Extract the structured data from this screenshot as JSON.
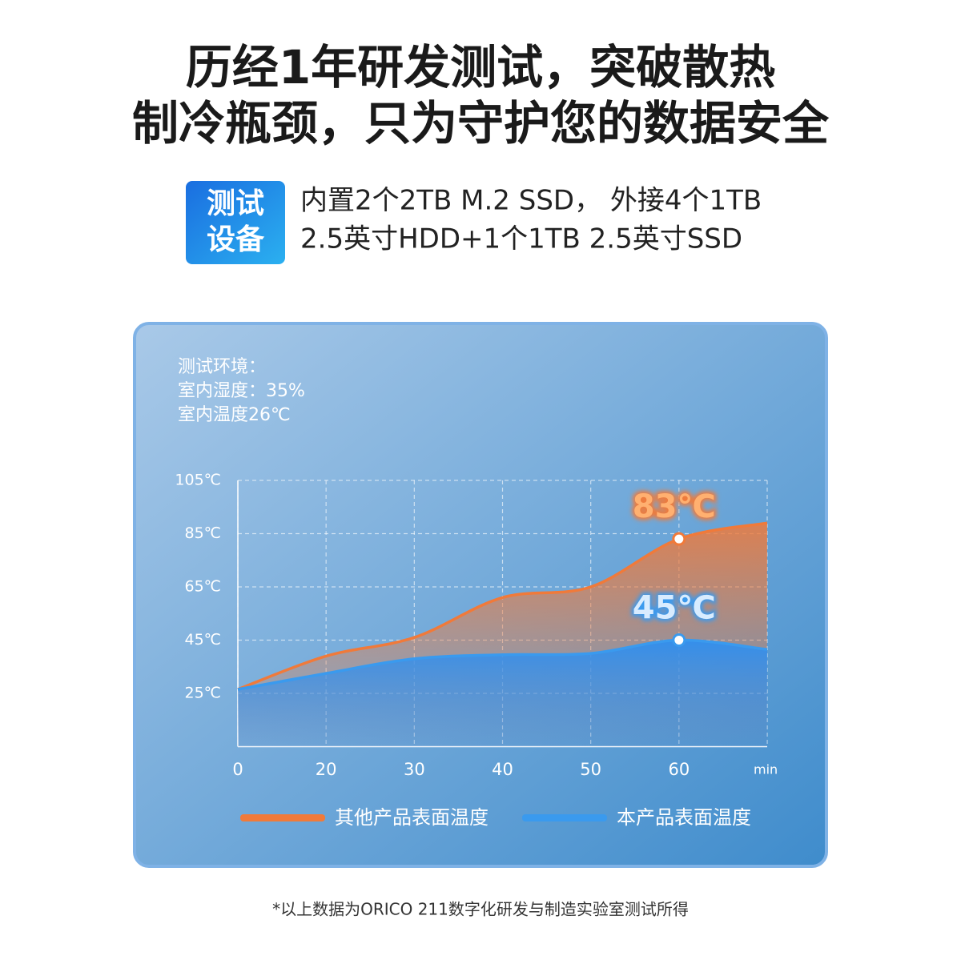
{
  "header": {
    "title_lines": [
      "历经1年研发测试，突破散热",
      "制冷瓶颈，只为守护您的数据安全"
    ]
  },
  "badge": {
    "lines": [
      "测试",
      "设备"
    ]
  },
  "spec": {
    "lines": [
      "内置2个2TB M.2 SSD， 外接4个1TB",
      "2.5英寸HDD+1个1TB 2.5英寸SSD"
    ]
  },
  "chart_data": {
    "type": "area",
    "annotations": [
      "测试环境：",
      "室内湿度：35%",
      "室内温度26℃"
    ],
    "categories": [
      "0",
      "20",
      "30",
      "40",
      "50",
      "60",
      null
    ],
    "x_label": "min",
    "ylim": [
      5,
      105
    ],
    "yticks": [
      {
        "value": 25,
        "label": "25℃"
      },
      {
        "value": 45,
        "label": "45℃"
      },
      {
        "value": 65,
        "label": "65℃"
      },
      {
        "value": 85,
        "label": "85℃"
      },
      {
        "value": 105,
        "label": "105℃"
      }
    ],
    "grid": true,
    "series": [
      {
        "name": "其他产品表面温度",
        "color": "#f07a3a",
        "values": [
          26.5,
          39,
          46,
          61,
          65,
          83,
          89
        ],
        "value_labels": [
          null,
          null,
          null,
          null,
          null,
          "83℃",
          null
        ]
      },
      {
        "name": "本产品表面温度",
        "color": "#3a9aee",
        "values": [
          26.5,
          32.5,
          38,
          39.5,
          40,
          45,
          41.5
        ],
        "value_labels": [
          null,
          null,
          null,
          null,
          null,
          "45℃",
          null
        ]
      }
    ]
  },
  "note": "*以上数据为ORICO 211数字化研发与制造实验室测试所得"
}
